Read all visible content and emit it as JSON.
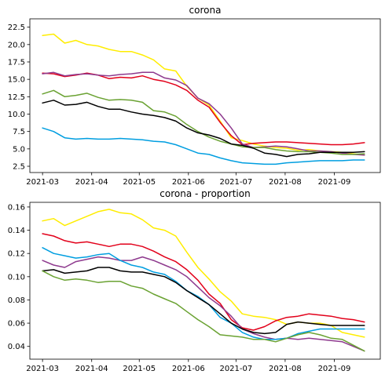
{
  "chart_data": [
    {
      "type": "line",
      "title": "corona",
      "xlabel": "",
      "ylabel": "",
      "x_dates": [
        "2021-03-01",
        "2021-03-08",
        "2021-03-15",
        "2021-03-22",
        "2021-03-29",
        "2021-04-05",
        "2021-04-12",
        "2021-04-19",
        "2021-04-26",
        "2021-05-03",
        "2021-05-10",
        "2021-05-17",
        "2021-05-24",
        "2021-05-31",
        "2021-06-07",
        "2021-06-14",
        "2021-06-21",
        "2021-06-28",
        "2021-07-05",
        "2021-07-12",
        "2021-07-19",
        "2021-07-26",
        "2021-08-02",
        "2021-08-09",
        "2021-08-16",
        "2021-08-23",
        "2021-08-30",
        "2021-09-06",
        "2021-09-13",
        "2021-09-20"
      ],
      "x_ticks": [
        "2021-03",
        "2021-04",
        "2021-05",
        "2021-06",
        "2021-07",
        "2021-08",
        "2021-09"
      ],
      "y_ticks": [
        "2.5",
        "5.0",
        "7.5",
        "10.0",
        "12.5",
        "15.0",
        "17.5",
        "20.0",
        "22.5"
      ],
      "xlim": [
        "2021-02-21",
        "2021-09-30"
      ],
      "ylim": [
        1.6,
        23.7
      ],
      "series": [
        {
          "color": "#ffed00",
          "values": [
            21.3,
            21.5,
            20.2,
            20.6,
            20.0,
            19.8,
            19.3,
            19.0,
            19.0,
            18.5,
            17.8,
            16.5,
            16.2,
            14.0,
            12.3,
            11.3,
            9.0,
            6.6,
            6.2,
            5.7,
            5.4,
            5.2,
            5.1,
            4.8,
            4.9,
            4.7,
            4.6,
            4.5,
            4.3,
            4.1
          ]
        },
        {
          "color": "#e2001a",
          "values": [
            15.9,
            15.8,
            15.4,
            15.6,
            15.9,
            15.6,
            15.1,
            15.3,
            15.2,
            15.5,
            15.0,
            14.7,
            14.2,
            13.4,
            12.0,
            11.0,
            8.8,
            6.9,
            5.6,
            5.8,
            5.9,
            6.0,
            6.0,
            5.9,
            5.8,
            5.7,
            5.6,
            5.6,
            5.7,
            5.9
          ]
        },
        {
          "color": "#8e3a8e",
          "values": [
            15.8,
            16.0,
            15.5,
            15.7,
            15.8,
            15.6,
            15.5,
            15.7,
            15.8,
            16.0,
            16.0,
            15.2,
            14.9,
            14.1,
            12.3,
            11.5,
            10.0,
            8.0,
            5.7,
            5.2,
            5.3,
            5.4,
            5.3,
            5.0,
            4.7,
            4.7,
            4.6,
            4.4,
            4.2,
            4.1
          ]
        },
        {
          "color": "#6aa232",
          "values": [
            12.9,
            13.4,
            12.5,
            12.7,
            13.0,
            12.4,
            12.0,
            12.1,
            12.0,
            11.7,
            10.5,
            10.3,
            9.7,
            8.5,
            7.5,
            6.7,
            6.1,
            5.7,
            5.3,
            5.2,
            5.2,
            4.9,
            4.7,
            4.6,
            4.6,
            4.5,
            4.4,
            4.2,
            4.2,
            4.3
          ]
        },
        {
          "color": "#000000",
          "values": [
            11.6,
            12.0,
            11.3,
            11.4,
            11.7,
            11.1,
            10.7,
            10.7,
            10.3,
            10.0,
            9.8,
            9.5,
            9.0,
            8.0,
            7.3,
            7.0,
            6.5,
            5.7,
            5.5,
            5.1,
            4.4,
            4.2,
            3.9,
            4.2,
            4.3,
            4.5,
            4.5,
            4.5,
            4.5,
            4.6
          ]
        },
        {
          "color": "#009ee0",
          "values": [
            8.0,
            7.5,
            6.6,
            6.4,
            6.5,
            6.4,
            6.4,
            6.5,
            6.4,
            6.3,
            6.1,
            6.0,
            5.6,
            5.0,
            4.4,
            4.2,
            3.7,
            3.3,
            3.0,
            2.9,
            2.8,
            2.8,
            3.0,
            3.1,
            3.2,
            3.3,
            3.3,
            3.3,
            3.4,
            3.4
          ]
        }
      ]
    },
    {
      "type": "line",
      "title": "corona - proportion",
      "xlabel": "",
      "ylabel": "",
      "x_dates": [
        "2021-03-01",
        "2021-03-08",
        "2021-03-15",
        "2021-03-22",
        "2021-03-29",
        "2021-04-05",
        "2021-04-12",
        "2021-04-19",
        "2021-04-26",
        "2021-05-03",
        "2021-05-10",
        "2021-05-17",
        "2021-05-24",
        "2021-05-31",
        "2021-06-07",
        "2021-06-14",
        "2021-06-21",
        "2021-06-28",
        "2021-07-05",
        "2021-07-12",
        "2021-07-19",
        "2021-07-26",
        "2021-08-02",
        "2021-08-09",
        "2021-08-16",
        "2021-08-23",
        "2021-08-30",
        "2021-09-06",
        "2021-09-13",
        "2021-09-20"
      ],
      "x_ticks": [
        "2021-03",
        "2021-04",
        "2021-05",
        "2021-06",
        "2021-07",
        "2021-08",
        "2021-09"
      ],
      "y_ticks": [
        "0.04",
        "0.06",
        "0.08",
        "0.10",
        "0.12",
        "0.14",
        "0.16"
      ],
      "xlim": [
        "2021-02-21",
        "2021-09-30"
      ],
      "ylim": [
        0.029,
        0.164
      ],
      "series": [
        {
          "color": "#ffed00",
          "values": [
            0.148,
            0.15,
            0.144,
            0.148,
            0.152,
            0.156,
            0.158,
            0.155,
            0.154,
            0.149,
            0.142,
            0.14,
            0.135,
            0.121,
            0.108,
            0.098,
            0.087,
            0.079,
            0.068,
            0.066,
            0.065,
            0.063,
            0.059,
            0.061,
            0.06,
            0.06,
            0.058,
            0.052,
            0.05,
            0.048
          ]
        },
        {
          "color": "#e2001a",
          "values": [
            0.137,
            0.135,
            0.131,
            0.129,
            0.13,
            0.128,
            0.126,
            0.128,
            0.128,
            0.126,
            0.122,
            0.117,
            0.113,
            0.106,
            0.097,
            0.085,
            0.077,
            0.063,
            0.056,
            0.054,
            0.057,
            0.062,
            0.065,
            0.066,
            0.068,
            0.067,
            0.066,
            0.064,
            0.063,
            0.061
          ]
        },
        {
          "color": "#8e3a8e",
          "values": [
            0.114,
            0.11,
            0.108,
            0.113,
            0.115,
            0.117,
            0.116,
            0.114,
            0.114,
            0.117,
            0.114,
            0.11,
            0.106,
            0.1,
            0.091,
            0.082,
            0.075,
            0.066,
            0.055,
            0.051,
            0.048,
            0.046,
            0.047,
            0.046,
            0.047,
            0.046,
            0.045,
            0.044,
            0.04,
            0.036
          ]
        },
        {
          "color": "#009ee0",
          "values": [
            0.125,
            0.12,
            0.118,
            0.116,
            0.117,
            0.119,
            0.12,
            0.114,
            0.11,
            0.108,
            0.104,
            0.102,
            0.096,
            0.088,
            0.083,
            0.076,
            0.065,
            0.06,
            0.052,
            0.048,
            0.046,
            0.046,
            0.047,
            0.051,
            0.053,
            0.055,
            0.055,
            0.055,
            0.055,
            0.055
          ]
        },
        {
          "color": "#000000",
          "values": [
            0.105,
            0.106,
            0.103,
            0.104,
            0.105,
            0.108,
            0.108,
            0.105,
            0.104,
            0.104,
            0.102,
            0.1,
            0.095,
            0.088,
            0.082,
            0.076,
            0.068,
            0.06,
            0.055,
            0.052,
            0.051,
            0.052,
            0.059,
            0.061,
            0.06,
            0.059,
            0.058,
            0.058,
            0.058,
            0.058
          ]
        },
        {
          "color": "#6aa232",
          "values": [
            0.105,
            0.1,
            0.097,
            0.098,
            0.097,
            0.095,
            0.096,
            0.096,
            0.092,
            0.09,
            0.085,
            0.081,
            0.077,
            0.07,
            0.063,
            0.057,
            0.05,
            0.049,
            0.048,
            0.046,
            0.046,
            0.044,
            0.047,
            0.05,
            0.052,
            0.05,
            0.047,
            0.046,
            0.041,
            0.036
          ]
        }
      ]
    }
  ]
}
